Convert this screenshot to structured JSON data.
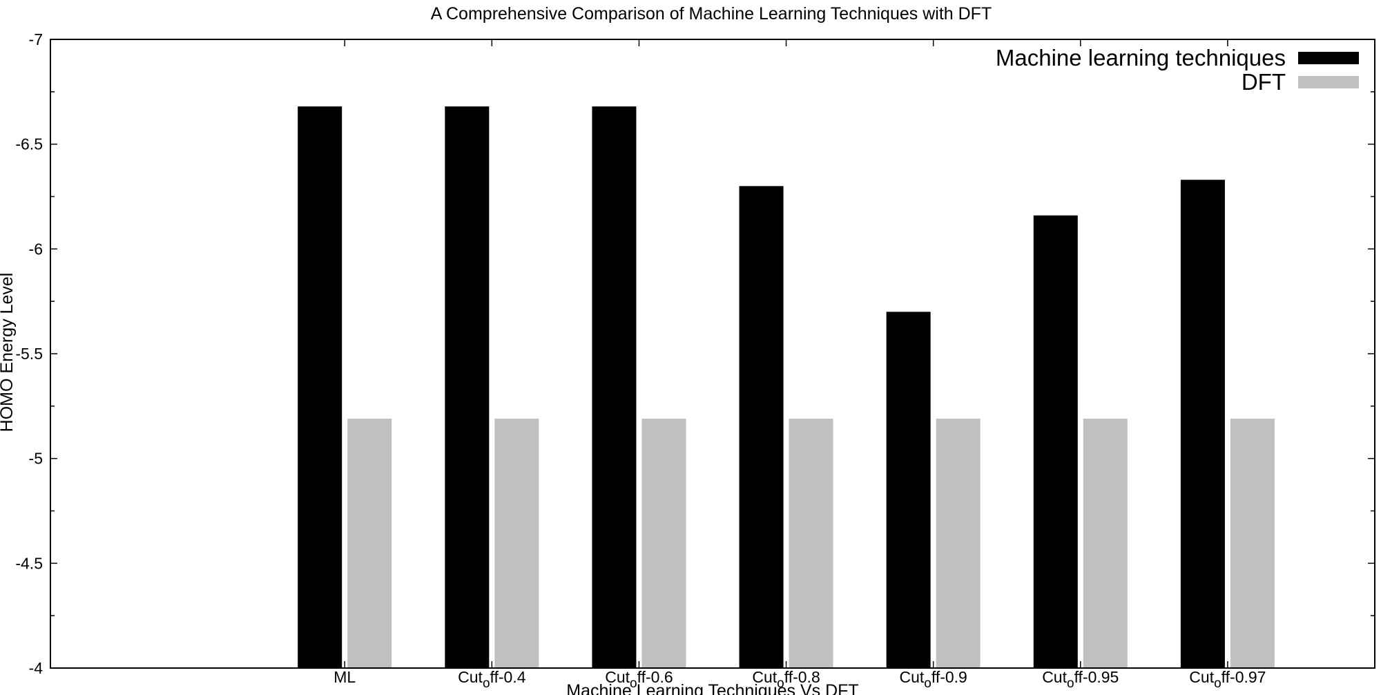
{
  "chart_data": {
    "type": "bar",
    "title": "A Comprehensive Comparison of Machine Learning Techniques with DFT",
    "xlabel": "Machine Learning Techniques Vs DFT",
    "ylabel": "HOMO Energy Level",
    "categories": [
      {
        "label": "ML"
      },
      {
        "label": "Cut",
        "sub": "o",
        "rest": "ff-0.4"
      },
      {
        "label": "Cut",
        "sub": "o",
        "rest": "ff-0.6"
      },
      {
        "label": "Cut",
        "sub": "o",
        "rest": "ff-0.8"
      },
      {
        "label": "Cut",
        "sub": "o",
        "rest": "ff-0.9"
      },
      {
        "label": "Cut",
        "sub": "o",
        "rest": "ff-0.95"
      },
      {
        "label": "Cut",
        "sub": "o",
        "rest": "ff-0.97"
      }
    ],
    "series": [
      {
        "name": "Machine learning techniques",
        "color": "#000000",
        "values": [
          -6.68,
          -6.68,
          -6.68,
          -6.3,
          -5.7,
          -6.16,
          -6.33
        ]
      },
      {
        "name": "DFT",
        "color": "#c0c0c0",
        "values": [
          -5.19,
          -5.19,
          -5.19,
          -5.19,
          -5.19,
          -5.19,
          -5.19
        ]
      }
    ],
    "ylim": [
      -4,
      -7
    ],
    "yticks": [
      "-7",
      "-6.5",
      "-6",
      "-5.5",
      "-5",
      "-4.5",
      "-4"
    ],
    "ytick_values": [
      -7,
      -6.5,
      -6,
      -5.5,
      -5,
      -4.5,
      -4
    ],
    "xrange": [
      0,
      9
    ],
    "category_positions": [
      2,
      3,
      4,
      5,
      6,
      7,
      8
    ],
    "legend": "top-right",
    "grid": false
  }
}
